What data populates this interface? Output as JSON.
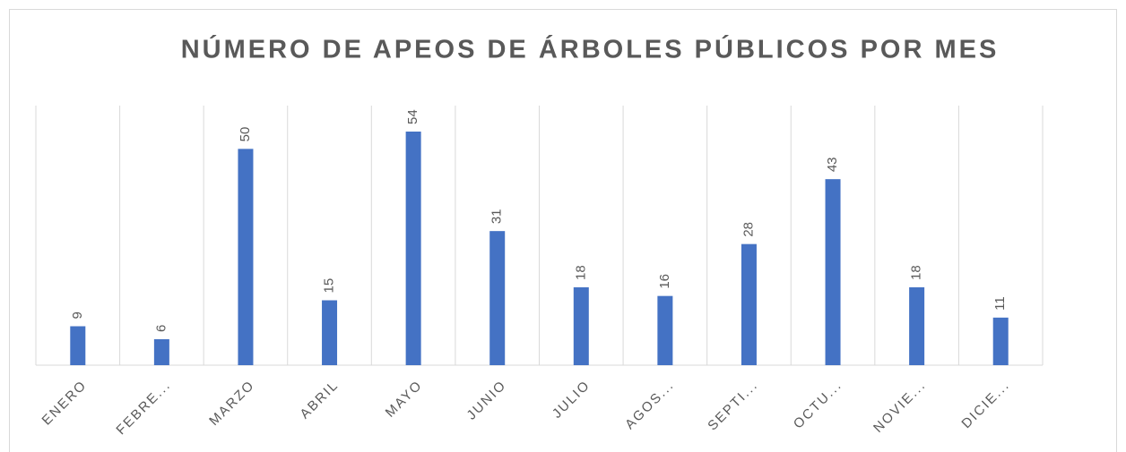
{
  "chart_data": {
    "type": "bar",
    "title": "NÚMERO DE APEOS DE ÁRBOLES PÚBLICOS POR MES",
    "categories": [
      "ENERO",
      "FEBRE...",
      "MARZO",
      "ABRIL",
      "MAYO",
      "JUNIO",
      "JULIO",
      "AGOS...",
      "SEPTI...",
      "OCTU...",
      "NOVIE...",
      "DICIE..."
    ],
    "values": [
      9,
      6,
      50,
      15,
      54,
      31,
      18,
      16,
      28,
      43,
      18,
      11
    ],
    "color": "#4472c4",
    "ylim": [
      0,
      60
    ],
    "grid": true
  }
}
